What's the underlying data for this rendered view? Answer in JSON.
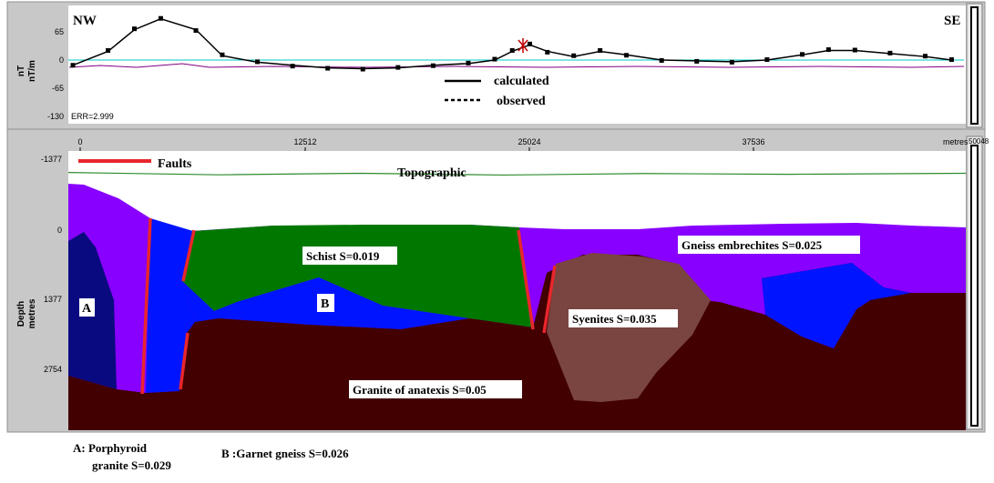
{
  "profile_panel": {
    "left_label": "NW",
    "right_label": "SE",
    "y_axis_label_1": "nT",
    "y_axis_label_2": "nT/m",
    "y_ticks": [
      "65",
      "0",
      "-65",
      "-130"
    ],
    "error_text": "ERR=2.999",
    "legend": {
      "calculated": "calculated",
      "observed": "observed"
    }
  },
  "section_panel": {
    "x_ticks": [
      "0",
      "12512",
      "25024",
      "37536"
    ],
    "x_unit": "metres",
    "x_end_tick": "50048",
    "y_ticks": [
      "-1377",
      "0",
      "1377",
      "2754"
    ],
    "y_axis_label_1": "Depth",
    "y_axis_label_2": "metres",
    "faults_label": "Faults",
    "topographic_label": "Topographic",
    "unit_labels": {
      "schist": "Schist S=0.019",
      "b": "B",
      "a": "A",
      "gneiss": "Gneiss embrechites S=0.025",
      "syenites": "Syenites S=0.035",
      "granite": "Granite of anatexis S=0.05"
    }
  },
  "footnotes": {
    "a_line1": "A:  Porphyroid",
    "a_line2": "granite S=0.029",
    "b": "B :Garnet gneiss S=0.026"
  },
  "colors": {
    "porphyroid_granite": "#0a0a80",
    "garnet_gneiss": "#0014ff",
    "schist": "#007800",
    "gneiss_embrechites": "#8800ff",
    "syenites": "#7a4440",
    "granite_anatexis": "#420000",
    "faults": "#e8262c",
    "topographic": "#2d8a2d",
    "zero_line": "#00c8c8",
    "residual": "#800080"
  },
  "chart_data": [
    {
      "type": "line",
      "title": "",
      "xlabel": "",
      "ylabel": "nT nT/m",
      "ylim": [
        -130,
        100
      ],
      "xlim": [
        -500,
        50048
      ],
      "series": [
        {
          "name": "calculated",
          "x": [
            -500,
            1500,
            3000,
            4500,
            6500,
            8000,
            10000,
            12000,
            14000,
            16000,
            18000,
            20000,
            22000,
            23500,
            24500,
            25500,
            26500,
            28000,
            29500,
            31000,
            33000,
            35000,
            37000,
            39000,
            41000,
            42500,
            44000,
            46000,
            48000,
            49500
          ],
          "values": [
            -12,
            20,
            70,
            95,
            70,
            10,
            -5,
            -12,
            -18,
            -20,
            -18,
            -12,
            -8,
            0,
            20,
            35,
            20,
            8,
            20,
            12,
            0,
            -2,
            -4,
            0,
            12,
            22,
            22,
            15,
            8,
            0
          ]
        },
        {
          "name": "observed",
          "x": [
            -500,
            1500,
            3000,
            4500,
            6500,
            8000,
            10000,
            12000,
            14000,
            16000,
            18000,
            20000,
            22000,
            23500,
            24500,
            25500,
            26500,
            28000,
            29500,
            31000,
            33000,
            35000,
            37000,
            39000,
            41000,
            42500,
            44000,
            46000,
            48000,
            49500
          ],
          "values": [
            -12,
            22,
            72,
            96,
            68,
            12,
            -4,
            -14,
            -19,
            -21,
            -17,
            -13,
            -7,
            2,
            22,
            37,
            18,
            10,
            22,
            11,
            -1,
            -3,
            -5,
            1,
            13,
            24,
            23,
            16,
            9,
            1
          ]
        }
      ]
    },
    {
      "type": "area",
      "title": "",
      "xlabel": "metres",
      "ylabel": "Depth metres",
      "ylim": [
        3100,
        -1600
      ],
      "xlim": [
        -500,
        50048
      ],
      "series": [
        {
          "name": "Topographic",
          "x": [
            -500,
            8000,
            16000,
            24000,
            32000,
            40000,
            50048
          ],
          "values": [
            -1115,
            -1070,
            -1100,
            -1065,
            -1095,
            -1080,
            -1100
          ]
        }
      ]
    }
  ]
}
